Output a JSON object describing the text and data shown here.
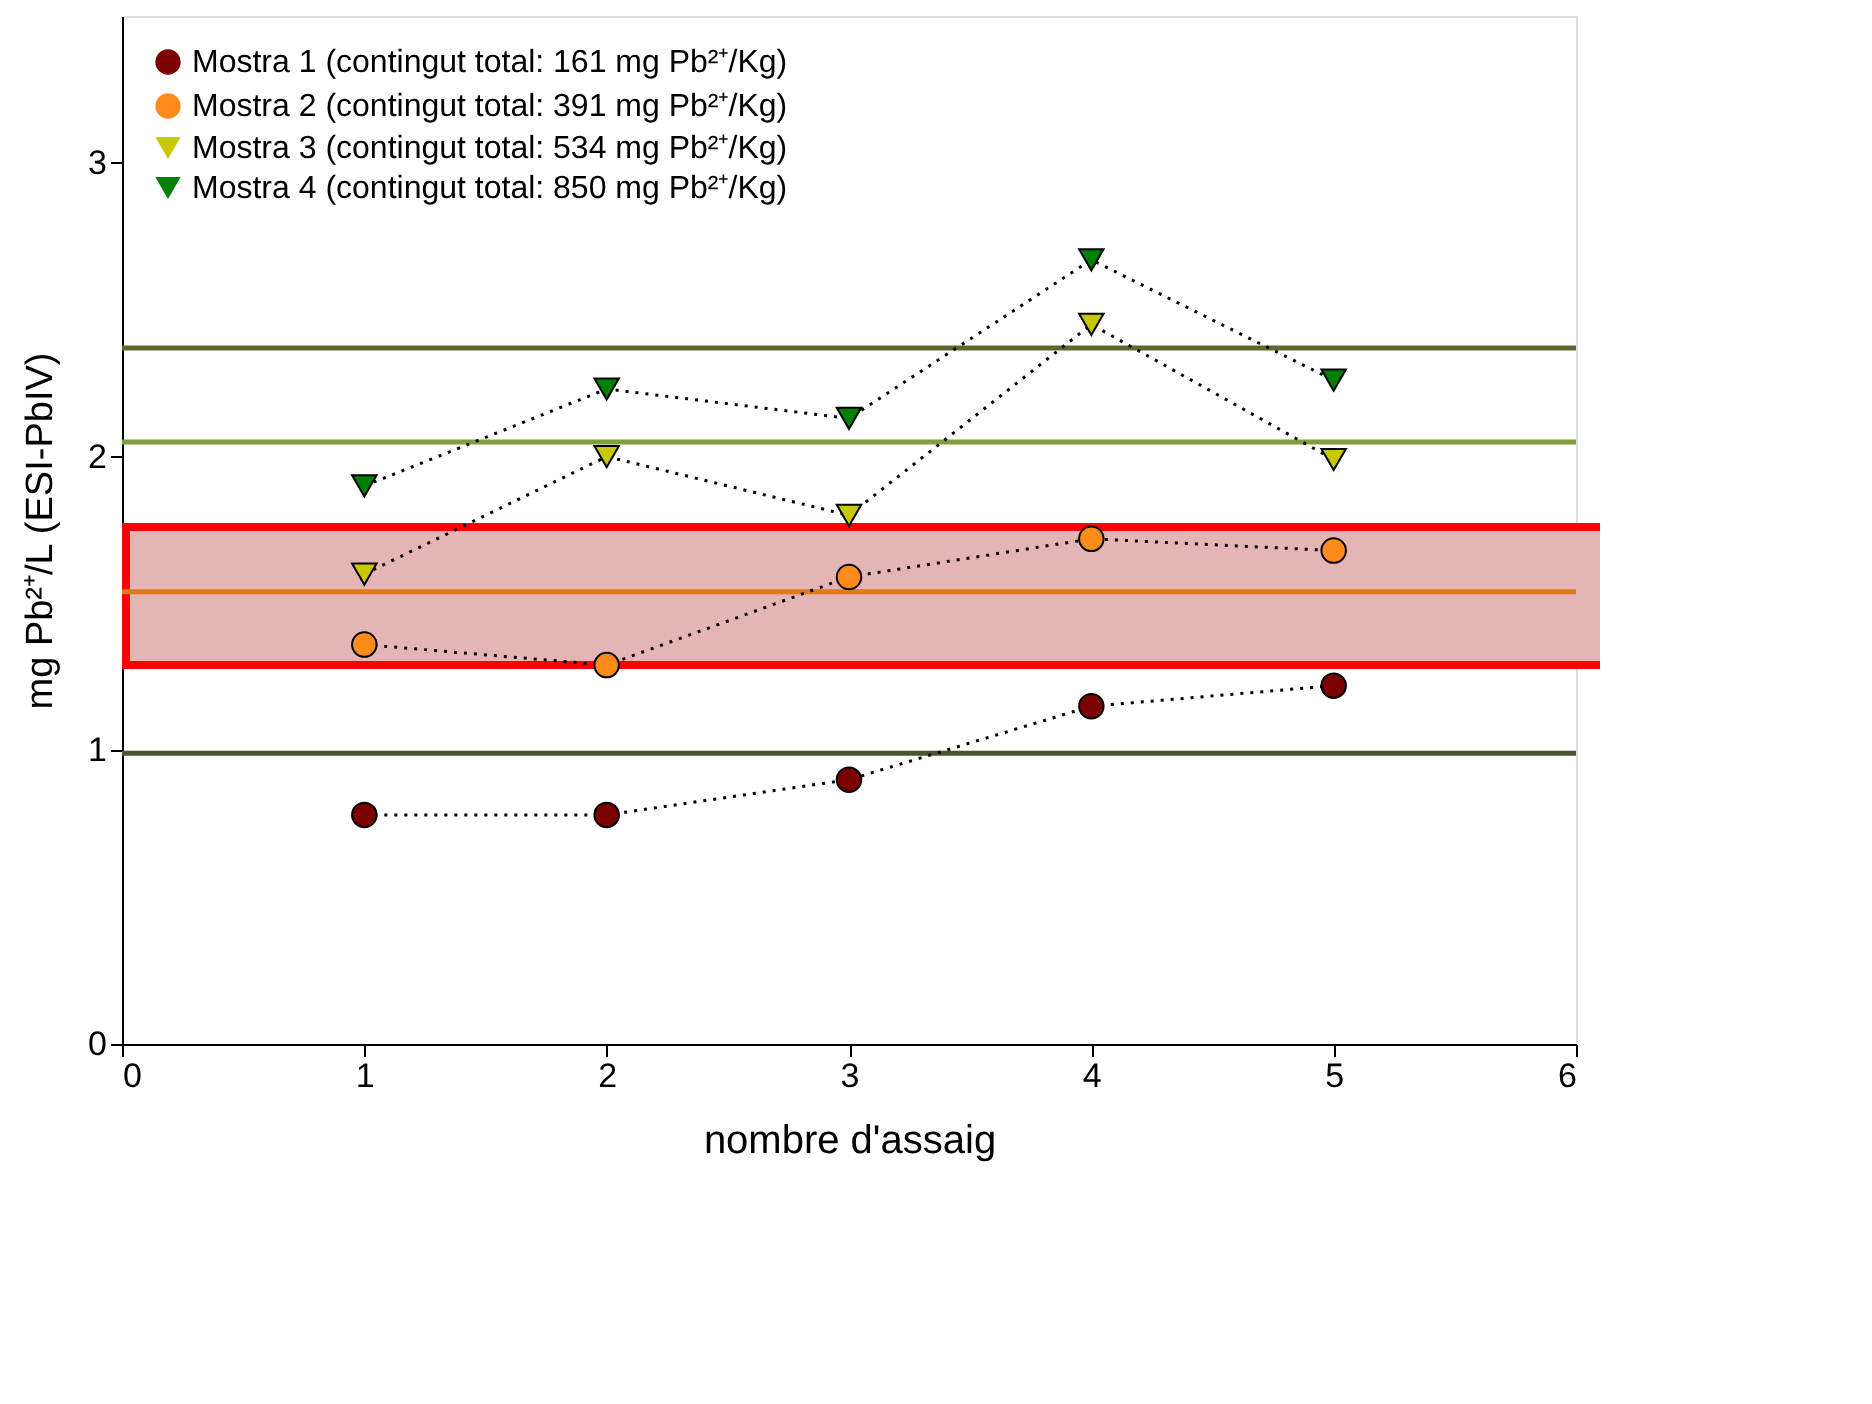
{
  "chart_data": {
    "type": "line",
    "xlabel": "nombre d'assaig",
    "ylabel": "mg Pb²⁺/L (ESI-PbIV)",
    "x": [
      1,
      2,
      3,
      4,
      5
    ],
    "xlim": [
      0,
      6
    ],
    "xticks": [
      0,
      1,
      2,
      3,
      4,
      5,
      6
    ],
    "ylim": [
      0,
      3.5
    ],
    "yticks": [
      0,
      1,
      2,
      3
    ],
    "grid": false,
    "legend": "top left",
    "line_style": "dotted",
    "series": [
      {
        "name": "Mostra 1 (contingut total: 161 mg Pb²⁺/Kg)",
        "color": "#7b0000",
        "marker": "circle",
        "values": [
          0.78,
          0.78,
          0.9,
          1.15,
          1.22
        ]
      },
      {
        "name": "Mostra 2 (contingut total: 391 mg Pb²⁺/Kg)",
        "color": "#ff8c1a",
        "marker": "circle",
        "values": [
          1.36,
          1.29,
          1.59,
          1.72,
          1.68
        ]
      },
      {
        "name": "Mostra 3 (contingut total: 534 mg Pb²⁺/Kg)",
        "color": "#c8c800",
        "marker": "triangle",
        "values": [
          1.6,
          2.0,
          1.8,
          2.45,
          1.99
        ]
      },
      {
        "name": "Mostra 4 (contingut total: 850 mg Pb²⁺/Kg)",
        "color": "#008000",
        "marker": "triangle",
        "values": [
          1.9,
          2.23,
          2.13,
          2.67,
          2.26
        ]
      }
    ],
    "ref_lines": [
      {
        "axis": "y",
        "value": 2.37,
        "color": "#5b6b2f"
      },
      {
        "axis": "y",
        "value": 2.05,
        "color": "#7f9f3f"
      },
      {
        "axis": "y",
        "value": 1.54,
        "color": "#e07820"
      },
      {
        "axis": "y",
        "value": 0.99,
        "color": "#4b5530"
      }
    ],
    "bands": [
      {
        "axis": "y",
        "from": 1.29,
        "to": 1.76,
        "color": "#e5b5b5"
      }
    ]
  }
}
